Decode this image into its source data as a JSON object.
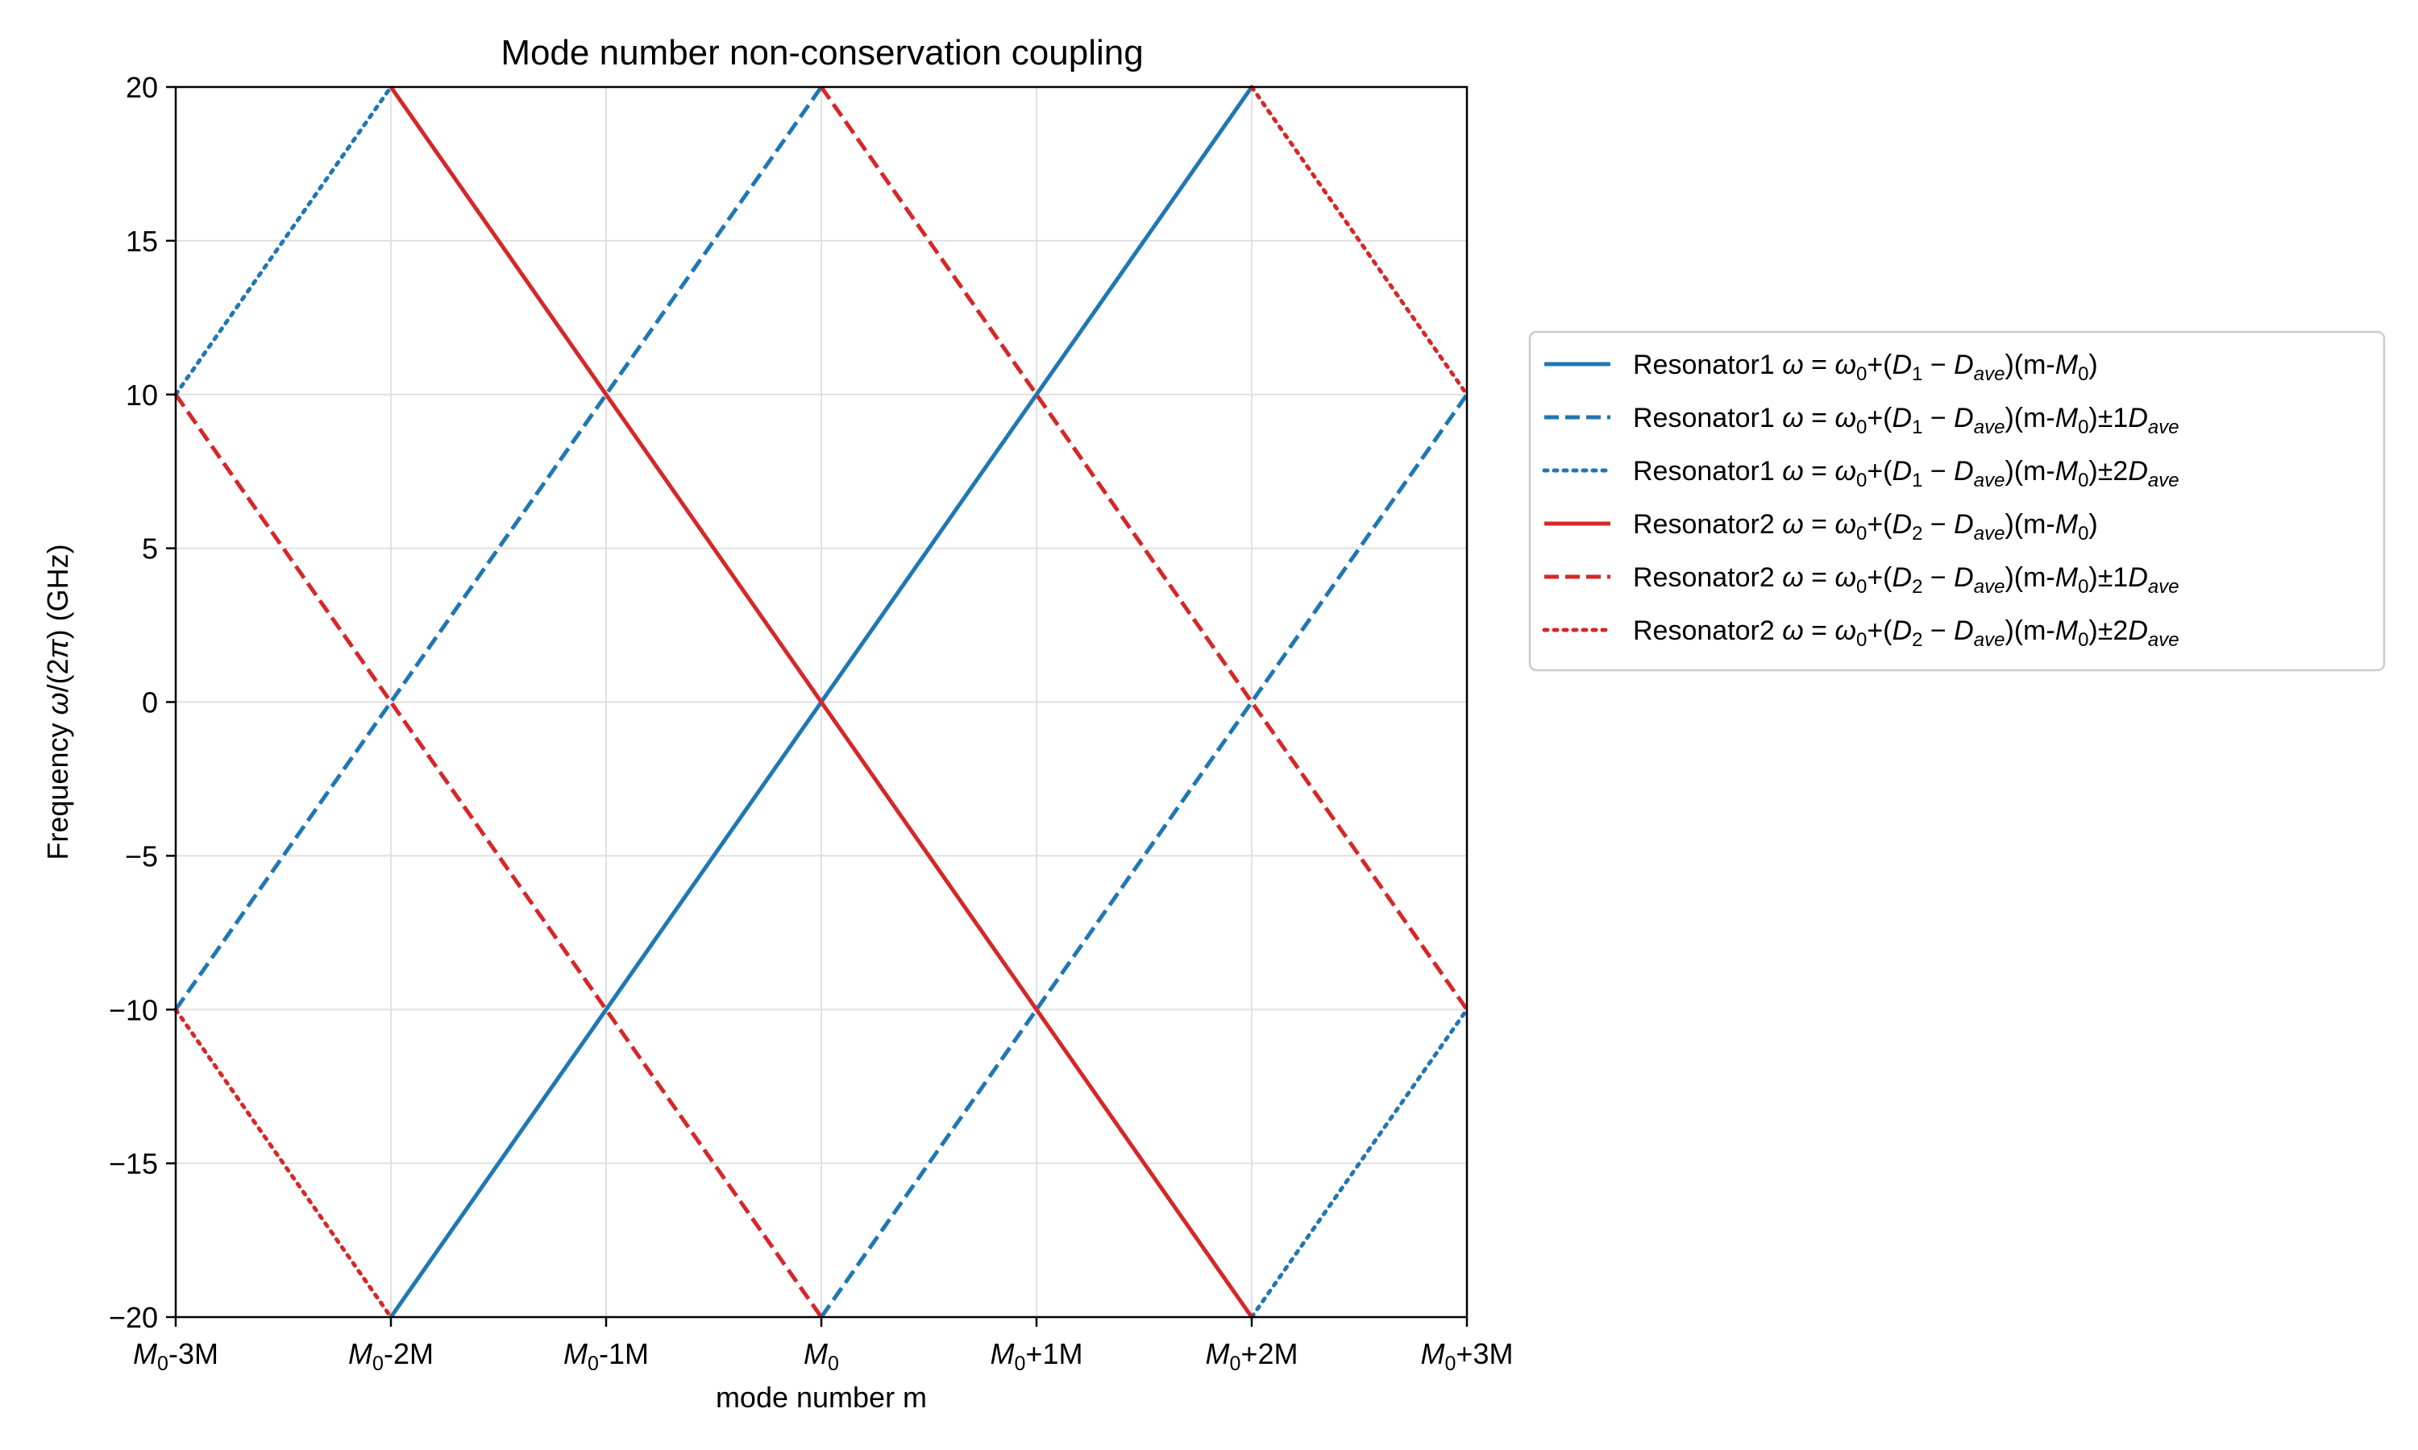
{
  "chart_data": {
    "type": "line",
    "title": "Mode number non-conservation coupling",
    "xlabel": "mode number m",
    "ylabel": {
      "pre": "Frequency ",
      "omega": "ω",
      "mid": "/(2",
      "pi": "π",
      "post": ") (GHz)"
    },
    "xlim": [
      -3,
      3
    ],
    "ylim": [
      -20,
      20
    ],
    "x_ticks": [
      -3,
      -2,
      -1,
      0,
      1,
      2,
      3
    ],
    "x_tick_labels": [
      {
        "base": "M",
        "sub": "0",
        "suffix": "-3M"
      },
      {
        "base": "M",
        "sub": "0",
        "suffix": "-2M"
      },
      {
        "base": "M",
        "sub": "0",
        "suffix": "-1M"
      },
      {
        "base": "M",
        "sub": "0",
        "suffix": ""
      },
      {
        "base": "M",
        "sub": "0",
        "suffix": "+1M"
      },
      {
        "base": "M",
        "sub": "0",
        "suffix": "+2M"
      },
      {
        "base": "M",
        "sub": "0",
        "suffix": "+3M"
      }
    ],
    "y_ticks": [
      -20,
      -15,
      -10,
      -5,
      0,
      5,
      10,
      15,
      20
    ],
    "y_tick_labels": [
      "−20",
      "−15",
      "−10",
      "−5",
      "0",
      "5",
      "10",
      "15",
      "20"
    ],
    "grid": true,
    "legend_position": "outside-right",
    "series": [
      {
        "name": "Resonator1 ω = ω0+(D1 − Dave)(m-M0)",
        "resonator": "1",
        "order": "",
        "color": "#1f77b4",
        "style": "solid",
        "segments": [
          [
            [
              -2,
              -20
            ],
            [
              2,
              20
            ]
          ]
        ]
      },
      {
        "name": "Resonator1 ω = ω0+(D1 − Dave)(m-M0)±1Dave",
        "resonator": "1",
        "order": "1",
        "color": "#1f77b4",
        "style": "dashed",
        "segments": [
          [
            [
              -3,
              -10
            ],
            [
              0,
              20
            ]
          ],
          [
            [
              0,
              -20
            ],
            [
              3,
              10
            ]
          ]
        ]
      },
      {
        "name": "Resonator1 ω = ω0+(D1 − Dave)(m-M0)±2Dave",
        "resonator": "1",
        "order": "2",
        "color": "#1f77b4",
        "style": "dotted",
        "segments": [
          [
            [
              -3,
              10
            ],
            [
              -2,
              20
            ]
          ],
          [
            [
              2,
              -20
            ],
            [
              3,
              -10
            ]
          ]
        ]
      },
      {
        "name": "Resonator2 ω = ω0+(D2 − Dave)(m-M0)",
        "resonator": "2",
        "order": "",
        "color": "#d62728",
        "style": "solid",
        "segments": [
          [
            [
              -2,
              20
            ],
            [
              2,
              -20
            ]
          ]
        ]
      },
      {
        "name": "Resonator2 ω = ω0+(D2 − Dave)(m-M0)±1Dave",
        "resonator": "2",
        "order": "1",
        "color": "#d62728",
        "style": "dashed",
        "segments": [
          [
            [
              -3,
              10
            ],
            [
              0,
              -20
            ]
          ],
          [
            [
              0,
              20
            ],
            [
              3,
              -10
            ]
          ]
        ]
      },
      {
        "name": "Resonator2 ω = ω0+(D2 − Dave)(m-M0)±2Dave",
        "resonator": "2",
        "order": "2",
        "color": "#d62728",
        "style": "dotted",
        "segments": [
          [
            [
              -3,
              -10
            ],
            [
              -2,
              -20
            ]
          ],
          [
            [
              2,
              20
            ],
            [
              3,
              10
            ]
          ]
        ]
      }
    ]
  }
}
